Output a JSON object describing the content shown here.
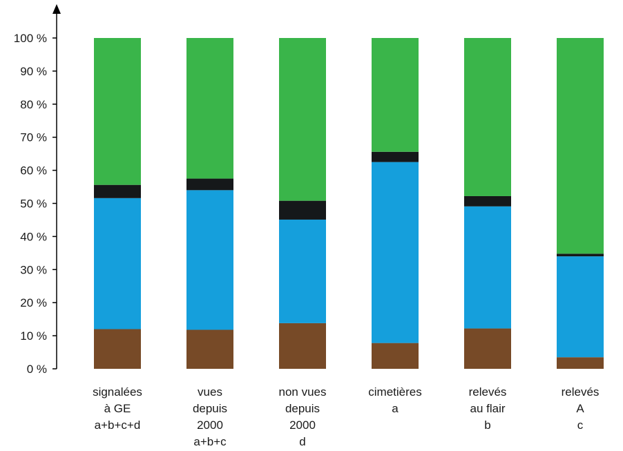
{
  "chart_data": {
    "type": "bar",
    "stacked": true,
    "categories": [
      [
        "signalées",
        "à GE",
        "a+b+c+d"
      ],
      [
        "vues",
        "depuis",
        "2000",
        "a+b+c"
      ],
      [
        "non vues",
        "depuis",
        "2000",
        "d"
      ],
      [
        "cimetières",
        "a"
      ],
      [
        "relevés",
        "au flair",
        "b"
      ],
      [
        "relevés",
        "A",
        "c"
      ]
    ],
    "series": [
      {
        "color": "#774a27",
        "values": [
          12,
          11.8,
          13.8,
          7.8,
          12.2,
          3.5
        ]
      },
      {
        "color": "#159fdc",
        "values": [
          39.6,
          42.2,
          31.3,
          54.7,
          36.9,
          30.5
        ]
      },
      {
        "color": "#15181a",
        "values": [
          4,
          3.5,
          5.7,
          3.1,
          3.1,
          0.8
        ]
      },
      {
        "color": "#3ab54a",
        "values": [
          44.4,
          42.5,
          49.2,
          34.4,
          47.8,
          65.2
        ]
      }
    ],
    "yticks": [
      "0 %",
      "10 %",
      "20 %",
      "30 %",
      "40 %",
      "50 %",
      "60 %",
      "70 %",
      "80 %",
      "90 %",
      "100 %"
    ],
    "ylim": [
      0,
      100
    ],
    "grid": false,
    "legend": "none"
  }
}
